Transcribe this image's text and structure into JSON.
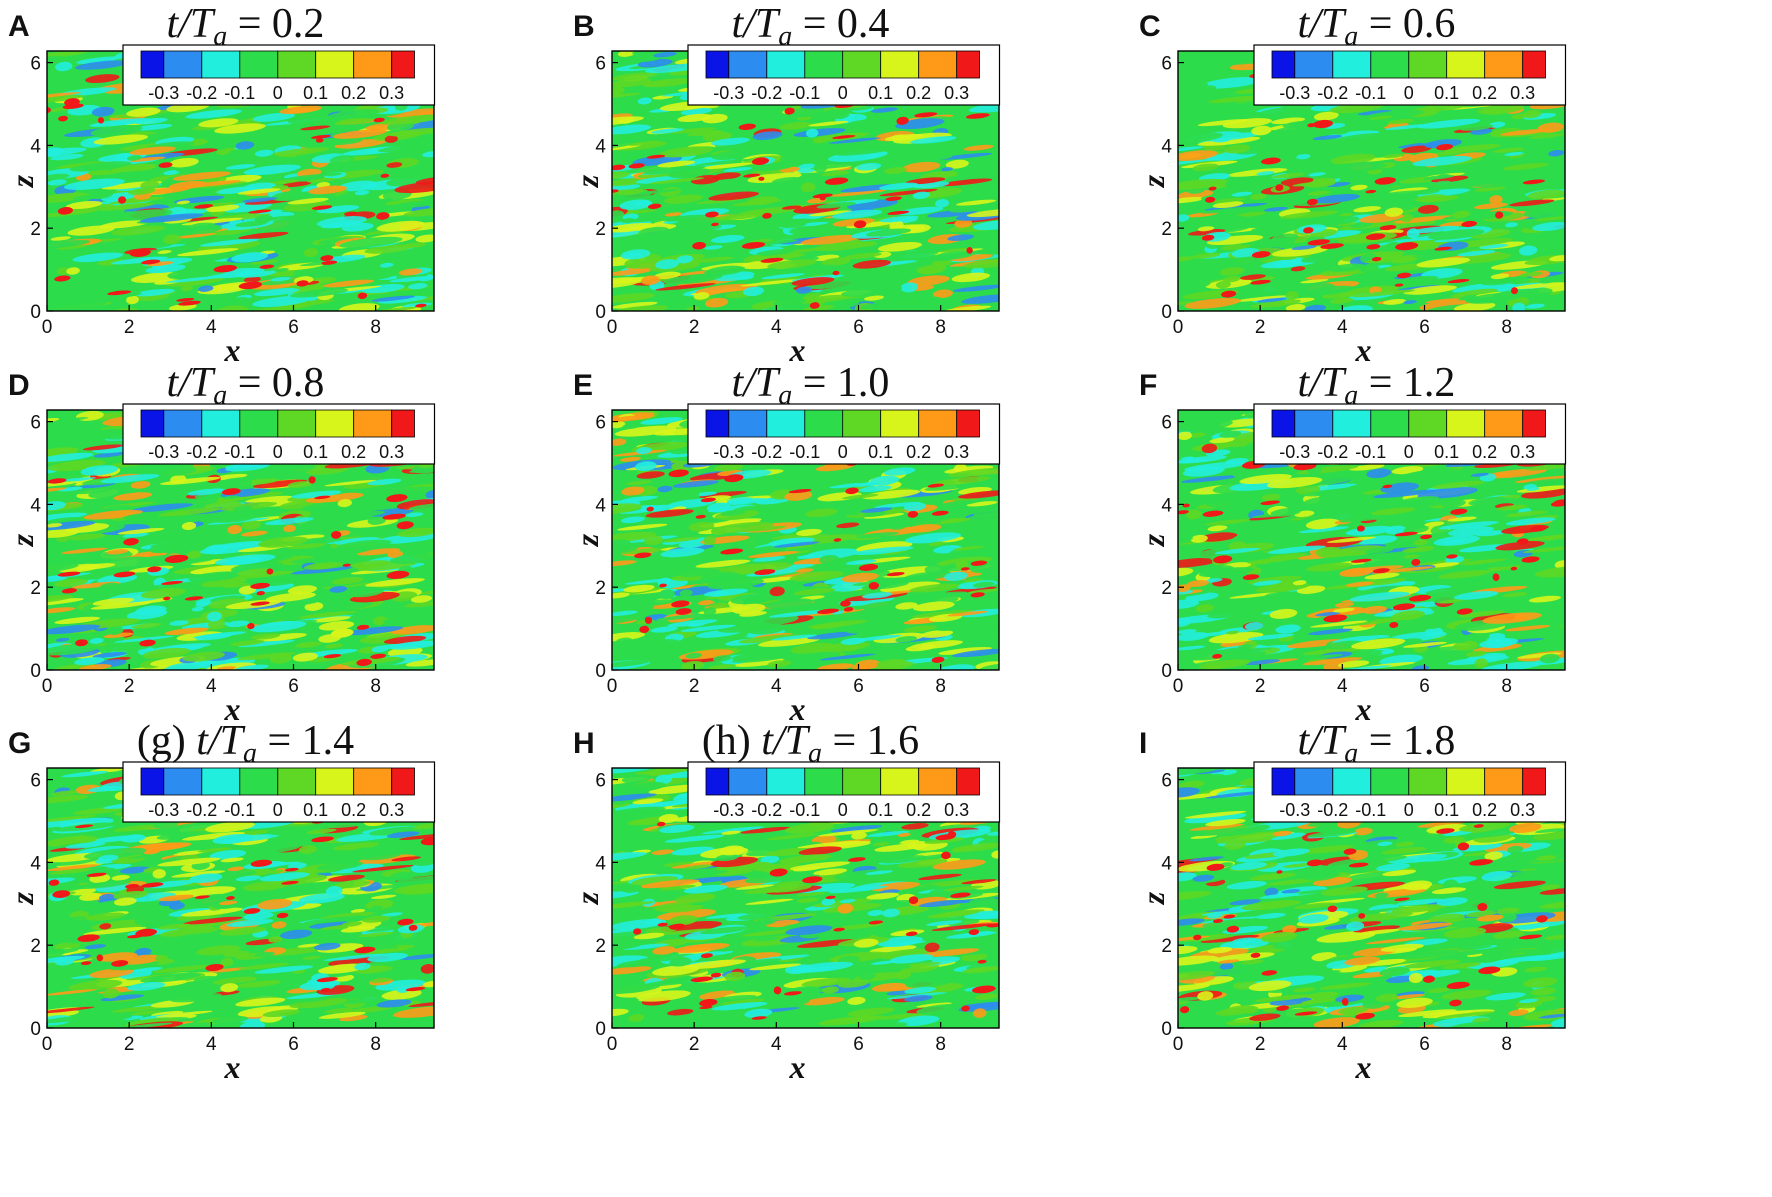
{
  "chart_data": {
    "type": "heatmap",
    "xlabel": "x",
    "ylabel": "z",
    "xlim": [
      0,
      9.42
    ],
    "ylim": [
      0,
      6.28
    ],
    "xticks": [
      "0",
      "2",
      "4",
      "6",
      "8"
    ],
    "yticks": [
      "0",
      "2",
      "4",
      "6"
    ],
    "colorbar": {
      "levels": [
        "-0.3",
        "-0.2",
        "-0.1",
        "0",
        "0.1",
        "0.2",
        "0.3"
      ],
      "colors": [
        "#0a14e6",
        "#2d8cf0",
        "#22eedd",
        "#2ddc4a",
        "#5ed824",
        "#d8f51b",
        "#ff9a18",
        "#f01818"
      ],
      "legend_placement": "top-right"
    },
    "panels": [
      {
        "label": "A",
        "prefix": "",
        "value": "0.2",
        "seed": 11
      },
      {
        "label": "B",
        "prefix": "",
        "value": "0.4",
        "seed": 23
      },
      {
        "label": "C",
        "prefix": "",
        "value": "0.6",
        "seed": 37
      },
      {
        "label": "D",
        "prefix": "",
        "value": "0.8",
        "seed": 41
      },
      {
        "label": "E",
        "prefix": "",
        "value": "1.0",
        "seed": 53
      },
      {
        "label": "F",
        "prefix": "",
        "value": "1.2",
        "seed": 67
      },
      {
        "label": "G",
        "prefix": "(g) ",
        "value": "1.4",
        "seed": 79
      },
      {
        "label": "H",
        "prefix": "(h) ",
        "value": "1.6",
        "seed": 83
      },
      {
        "label": "I",
        "prefix": "",
        "value": "1.8",
        "seed": 97
      }
    ]
  }
}
